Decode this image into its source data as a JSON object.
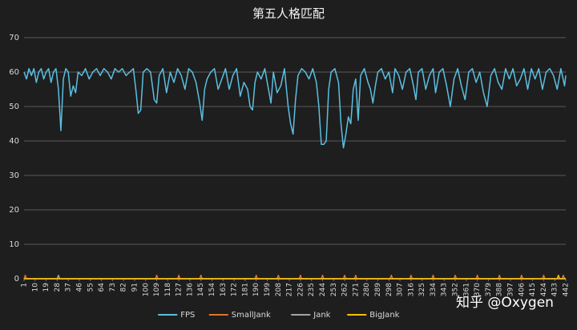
{
  "chart_data": {
    "type": "line",
    "title": "第五人格匹配",
    "watermark": "知乎 @Oxygen",
    "xlim": [
      1,
      442
    ],
    "xticks": [
      1,
      10,
      19,
      28,
      37,
      46,
      55,
      64,
      73,
      82,
      91,
      100,
      109,
      118,
      127,
      136,
      145,
      154,
      163,
      172,
      181,
      190,
      199,
      208,
      217,
      226,
      235,
      244,
      253,
      262,
      271,
      280,
      289,
      298,
      307,
      316,
      325,
      334,
      343,
      352,
      361,
      370,
      379,
      388,
      397,
      406,
      415,
      424,
      433,
      442
    ],
    "ylim": [
      0,
      70
    ],
    "yticks": [
      0,
      10,
      20,
      30,
      40,
      50,
      60,
      70
    ],
    "grid": true,
    "legend": "bottom",
    "series": [
      {
        "name": "FPS",
        "color": "#5bbfe0",
        "x": [
          1,
          3,
          5,
          7,
          9,
          11,
          13,
          15,
          17,
          19,
          21,
          23,
          25,
          27,
          29,
          31,
          33,
          35,
          37,
          39,
          41,
          43,
          45,
          48,
          51,
          54,
          57,
          60,
          63,
          66,
          69,
          72,
          75,
          78,
          81,
          84,
          87,
          90,
          92,
          94,
          96,
          98,
          101,
          104,
          107,
          109,
          111,
          114,
          117,
          120,
          123,
          126,
          129,
          132,
          135,
          138,
          141,
          144,
          146,
          148,
          150,
          153,
          156,
          159,
          162,
          165,
          168,
          171,
          174,
          177,
          180,
          183,
          185,
          187,
          189,
          191,
          194,
          197,
          200,
          202,
          204,
          207,
          210,
          213,
          216,
          218,
          220,
          222,
          224,
          227,
          230,
          233,
          236,
          239,
          241,
          243,
          245,
          247,
          249,
          251,
          254,
          257,
          259,
          261,
          263,
          265,
          267,
          269,
          271,
          273,
          275,
          278,
          281,
          283,
          285,
          287,
          289,
          292,
          295,
          298,
          301,
          303,
          306,
          309,
          312,
          315,
          318,
          320,
          322,
          325,
          328,
          331,
          334,
          336,
          339,
          342,
          345,
          348,
          351,
          354,
          357,
          360,
          363,
          366,
          369,
          372,
          375,
          378,
          381,
          384,
          387,
          390,
          393,
          396,
          399,
          402,
          405,
          408,
          411,
          414,
          417,
          420,
          423,
          426,
          429,
          432,
          435,
          438,
          441,
          442
        ],
        "values": [
          60,
          58,
          61,
          59,
          61,
          57,
          60,
          61,
          58,
          60,
          61,
          57,
          60,
          61,
          55,
          43,
          58,
          61,
          60,
          53,
          56,
          54,
          60,
          59,
          61,
          58,
          60,
          61,
          59,
          61,
          60,
          58,
          61,
          60,
          61,
          59,
          60,
          61,
          55,
          48,
          49,
          60,
          61,
          60,
          52,
          51,
          59,
          61,
          54,
          60,
          57,
          61,
          59,
          55,
          61,
          60,
          57,
          51,
          46,
          55,
          58,
          60,
          61,
          55,
          58,
          61,
          55,
          59,
          61,
          53,
          57,
          55,
          50,
          49,
          57,
          60,
          58,
          61,
          55,
          51,
          60,
          54,
          56,
          61,
          50,
          45,
          42,
          52,
          59,
          61,
          60,
          58,
          61,
          57,
          50,
          39,
          39,
          40,
          55,
          60,
          61,
          57,
          45,
          38,
          42,
          47,
          45,
          55,
          58,
          46,
          59,
          61,
          57,
          55,
          51,
          56,
          60,
          61,
          58,
          60,
          54,
          61,
          59,
          55,
          60,
          61,
          56,
          52,
          60,
          61,
          55,
          59,
          61,
          54,
          60,
          61,
          56,
          50,
          58,
          61,
          56,
          52,
          60,
          61,
          57,
          60,
          54,
          50,
          59,
          61,
          57,
          55,
          61,
          58,
          61,
          56,
          58,
          61,
          55,
          61,
          58,
          61,
          55,
          60,
          61,
          59,
          55,
          61,
          56,
          59
        ]
      },
      {
        "name": "SmallJank",
        "color": "#e8702a",
        "x": [
          1,
          2,
          3,
          108,
          109,
          110,
          126,
          127,
          128,
          144,
          145,
          146,
          189,
          190,
          191,
          207,
          208,
          209,
          225,
          226,
          227,
          243,
          244,
          245,
          261,
          262,
          263,
          270,
          271,
          272,
          299,
          300,
          301,
          315,
          316,
          317,
          333,
          334,
          335,
          351,
          352,
          353,
          369,
          370,
          371,
          387,
          388,
          389,
          405,
          406,
          407,
          423,
          424,
          425,
          439,
          440,
          441,
          442
        ],
        "values": [
          0,
          1,
          0,
          0,
          1,
          0,
          0,
          1,
          0,
          0,
          1,
          0,
          0,
          1,
          0,
          0,
          1,
          0,
          0,
          1,
          0,
          0,
          1,
          0,
          0,
          1,
          0,
          0,
          1,
          0,
          0,
          1,
          0,
          0,
          1,
          0,
          0,
          1,
          0,
          0,
          1,
          0,
          0,
          1,
          0,
          0,
          1,
          0,
          0,
          1,
          0,
          0,
          1,
          0,
          0,
          1,
          0,
          0
        ]
      },
      {
        "name": "Jank",
        "color": "#a5a5a5",
        "x": [
          1,
          28,
          29,
          30,
          442
        ],
        "values": [
          0,
          0,
          1,
          0,
          0
        ]
      },
      {
        "name": "BigJank",
        "color": "#ffc000",
        "x": [
          1,
          435,
          436,
          437,
          442
        ],
        "values": [
          0,
          0,
          1,
          0,
          0
        ]
      }
    ]
  }
}
